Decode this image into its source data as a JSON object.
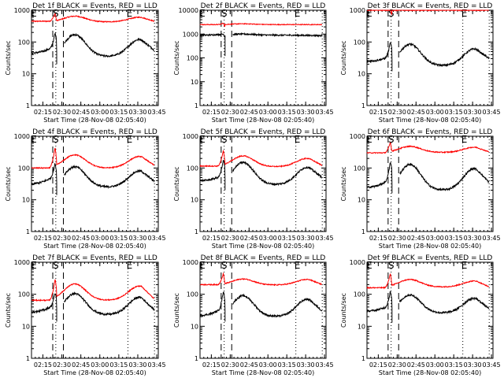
{
  "chart_data": {
    "type": "line",
    "layout": "3x3 grid",
    "x_ticks": [
      "02:15",
      "02:30",
      "02:45",
      "03:00",
      "03:15",
      "03:30",
      "03:45"
    ],
    "x_tick_hours": [
      2.25,
      2.5,
      2.75,
      3.0,
      3.25,
      3.5,
      3.75
    ],
    "x_range_hours": [
      2.1,
      3.77
    ],
    "xlabel": "Start Time (28-Nov-08 02:05:40)",
    "ylabel": "Counts/sec",
    "y_scale": "log",
    "legend_text": "BLACK = Events, RED = LLD",
    "series_colors": {
      "events": "#000000",
      "lld": "#ff0000"
    },
    "markers": {
      "dashed_lines_hours": [
        2.38,
        2.52
      ],
      "dotted_lines_hours": [
        2.42,
        3.37,
        3.72
      ],
      "labels": [
        {
          "text": "E",
          "hour": 2.13
        },
        {
          "text": "S",
          "hour": 2.42
        },
        {
          "text": "E",
          "hour": 3.39
        }
      ]
    },
    "panels": [
      {
        "title": "Det 1f BLACK = Events, RED = LLD",
        "ylim": [
          1,
          1000
        ],
        "yticks": [
          "1",
          "10",
          "100",
          "1000"
        ],
        "lld": {
          "base": 450,
          "flare_peak": 800,
          "hump1": 650,
          "dip": 430,
          "hump2": 600,
          "end": 450
        },
        "events": {
          "base": 45,
          "preflare": 60,
          "flare_peak": 190,
          "gap_min": 20,
          "hump1": 170,
          "dip": 35,
          "hump2": 120,
          "end": 55
        }
      },
      {
        "title": "Det 2f BLACK = Events, RED = LLD",
        "ylim": [
          1,
          10000
        ],
        "yticks": [
          "1",
          "10",
          "100",
          "1000",
          "10000"
        ],
        "lld": {
          "base": 2500,
          "flare_peak": 2900,
          "hump1": 2700,
          "dip": 2500,
          "hump2": 2500,
          "end": 2500
        },
        "events": {
          "base": 900,
          "preflare": 950,
          "flare_peak": 1000,
          "gap_min": 120,
          "hump1": 1000,
          "dip": 900,
          "hump2": 880,
          "end": 850
        }
      },
      {
        "title": "Det 3f BLACK = Events, RED = LLD",
        "ylim": [
          1,
          1000
        ],
        "yticks": [
          "1",
          "10",
          "100",
          "1000"
        ],
        "lld": {
          "base": 1000,
          "flare_peak": 1000,
          "hump1": 1000,
          "dip": 1000,
          "hump2": 1000,
          "end": 1000
        },
        "events": {
          "base": 25,
          "preflare": 30,
          "flare_peak": 100,
          "gap_min": 12,
          "hump1": 85,
          "dip": 18,
          "hump2": 60,
          "end": 30
        }
      },
      {
        "title": "Det 4f BLACK = Events, RED = LLD",
        "ylim": [
          1,
          1000
        ],
        "yticks": [
          "1",
          "10",
          "100",
          "1000"
        ],
        "lld": {
          "base": 100,
          "flare_peak": 450,
          "hump1": 260,
          "dip": 100,
          "hump2": 230,
          "end": 120
        },
        "events": {
          "base": 32,
          "preflare": 45,
          "flare_peak": 140,
          "gap_min": 14,
          "hump1": 110,
          "dip": 25,
          "hump2": 80,
          "end": 38
        }
      },
      {
        "title": "Det 5f BLACK = Events, RED = LLD",
        "ylim": [
          1,
          1000
        ],
        "yticks": [
          "1",
          "10",
          "100",
          "1000"
        ],
        "lld": {
          "base": 115,
          "flare_peak": 360,
          "hump1": 240,
          "dip": 110,
          "hump2": 200,
          "end": 120
        },
        "events": {
          "base": 40,
          "preflare": 50,
          "flare_peak": 180,
          "gap_min": 20,
          "hump1": 150,
          "dip": 30,
          "hump2": 105,
          "end": 50
        }
      },
      {
        "title": "Det 6f BLACK = Events, RED = LLD",
        "ylim": [
          1,
          1000
        ],
        "yticks": [
          "1",
          "10",
          "100",
          "1000"
        ],
        "lld": {
          "base": 300,
          "flare_peak": 650,
          "hump1": 480,
          "dip": 310,
          "hump2": 450,
          "end": 320
        },
        "events": {
          "base": 25,
          "preflare": 35,
          "flare_peak": 160,
          "gap_min": 16,
          "hump1": 130,
          "dip": 20,
          "hump2": 95,
          "end": 35
        }
      },
      {
        "title": "Det 7f BLACK = Events, RED = LLD",
        "ylim": [
          1,
          1000
        ],
        "yticks": [
          "1",
          "10",
          "100",
          "1000"
        ],
        "lld": {
          "base": 65,
          "flare_peak": 300,
          "hump1": 210,
          "dip": 65,
          "hump2": 180,
          "end": 70
        },
        "events": {
          "base": 28,
          "preflare": 38,
          "flare_peak": 110,
          "gap_min": 14,
          "hump1": 105,
          "dip": 23,
          "hump2": 80,
          "end": 32
        }
      },
      {
        "title": "Det 8f BLACK = Events, RED = LLD",
        "ylim": [
          1,
          1000
        ],
        "yticks": [
          "1",
          "10",
          "100",
          "1000"
        ],
        "lld": {
          "base": 200,
          "flare_peak": 450,
          "hump1": 300,
          "dip": 195,
          "hump2": 290,
          "end": 200
        },
        "events": {
          "base": 22,
          "preflare": 30,
          "flare_peak": 130,
          "gap_min": 14,
          "hump1": 90,
          "dip": 20,
          "hump2": 70,
          "end": 30
        }
      },
      {
        "title": "Det 9f BLACK = Events, RED = LLD",
        "ylim": [
          1,
          1000
        ],
        "yticks": [
          "1",
          "10",
          "100",
          "1000"
        ],
        "lld": {
          "base": 160,
          "flare_peak": 450,
          "hump1": 290,
          "dip": 170,
          "hump2": 260,
          "end": 170
        },
        "events": {
          "base": 30,
          "preflare": 38,
          "flare_peak": 125,
          "gap_min": 13,
          "hump1": 95,
          "dip": 26,
          "hump2": 75,
          "end": 35
        }
      }
    ]
  }
}
